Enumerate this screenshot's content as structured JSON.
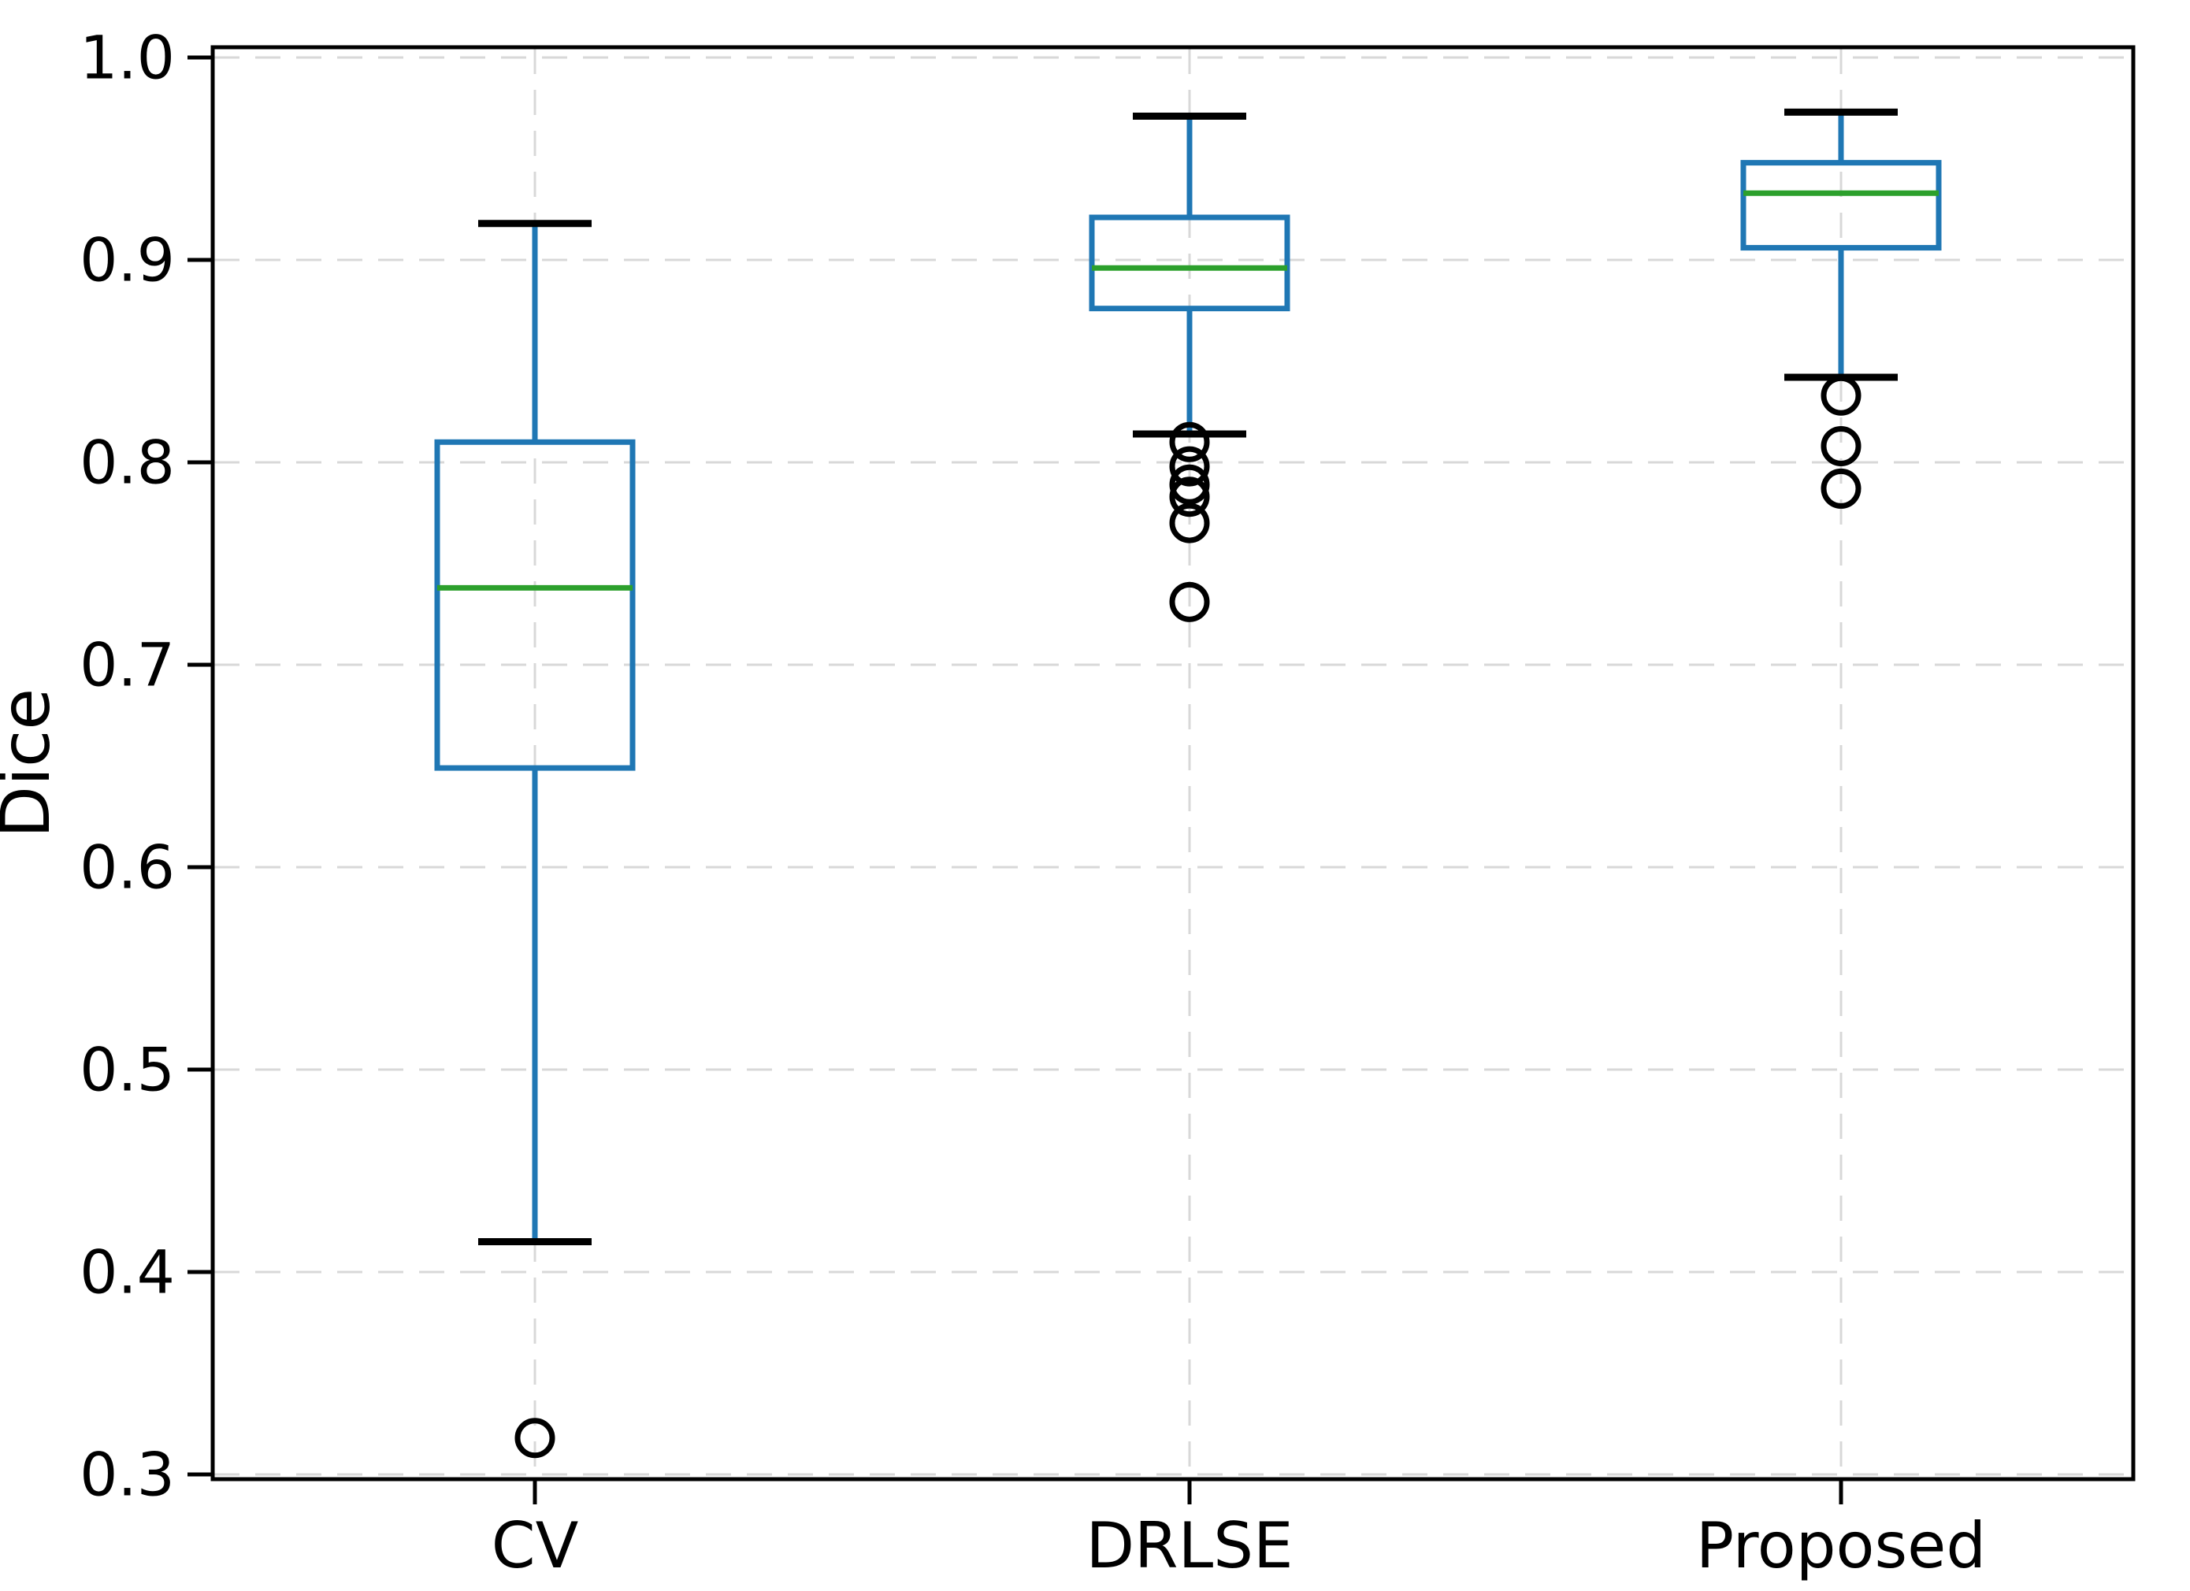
{
  "figure": {
    "background": "#ffffff"
  },
  "chart_data": {
    "type": "boxplot",
    "title": "",
    "xlabel": "",
    "ylabel": "Dice",
    "categories": [
      "CV",
      "DRLSE",
      "Proposed"
    ],
    "ylim": [
      0.298,
      1.005
    ],
    "grid": true,
    "legend_position": "none",
    "yticks": [
      {
        "value": 1.0,
        "label": "1.0"
      },
      {
        "value": 0.9,
        "label": "0.9"
      },
      {
        "value": 0.8,
        "label": "0.8"
      },
      {
        "value": 0.7,
        "label": "0.7"
      },
      {
        "value": 0.6,
        "label": "0.6"
      },
      {
        "value": 0.5,
        "label": "0.5"
      },
      {
        "value": 0.4,
        "label": "0.4"
      },
      {
        "value": 0.3,
        "label": "0.3"
      }
    ],
    "series": [
      {
        "name": "CV",
        "whisker_low": 0.415,
        "q1": 0.649,
        "median": 0.738,
        "q3": 0.81,
        "whisker_high": 0.918,
        "outliers": [
          0.318
        ]
      },
      {
        "name": "DRLSE",
        "whisker_low": 0.814,
        "q1": 0.876,
        "median": 0.896,
        "q3": 0.921,
        "whisker_high": 0.971,
        "outliers": [
          0.81,
          0.798,
          0.789,
          0.783,
          0.77,
          0.731
        ]
      },
      {
        "name": "Proposed",
        "whisker_low": 0.842,
        "q1": 0.906,
        "median": 0.933,
        "q3": 0.948,
        "whisker_high": 0.973,
        "outliers": [
          0.833,
          0.808,
          0.787
        ]
      }
    ],
    "colors": {
      "box": "#1f77b4",
      "whisker": "#1f77b4",
      "median": "#2ca02c",
      "cap": "#000000",
      "outlier_edge": "#000000",
      "grid": "#d8d8d8",
      "spine": "#000000",
      "text": "#000000",
      "background": "#ffffff"
    }
  }
}
